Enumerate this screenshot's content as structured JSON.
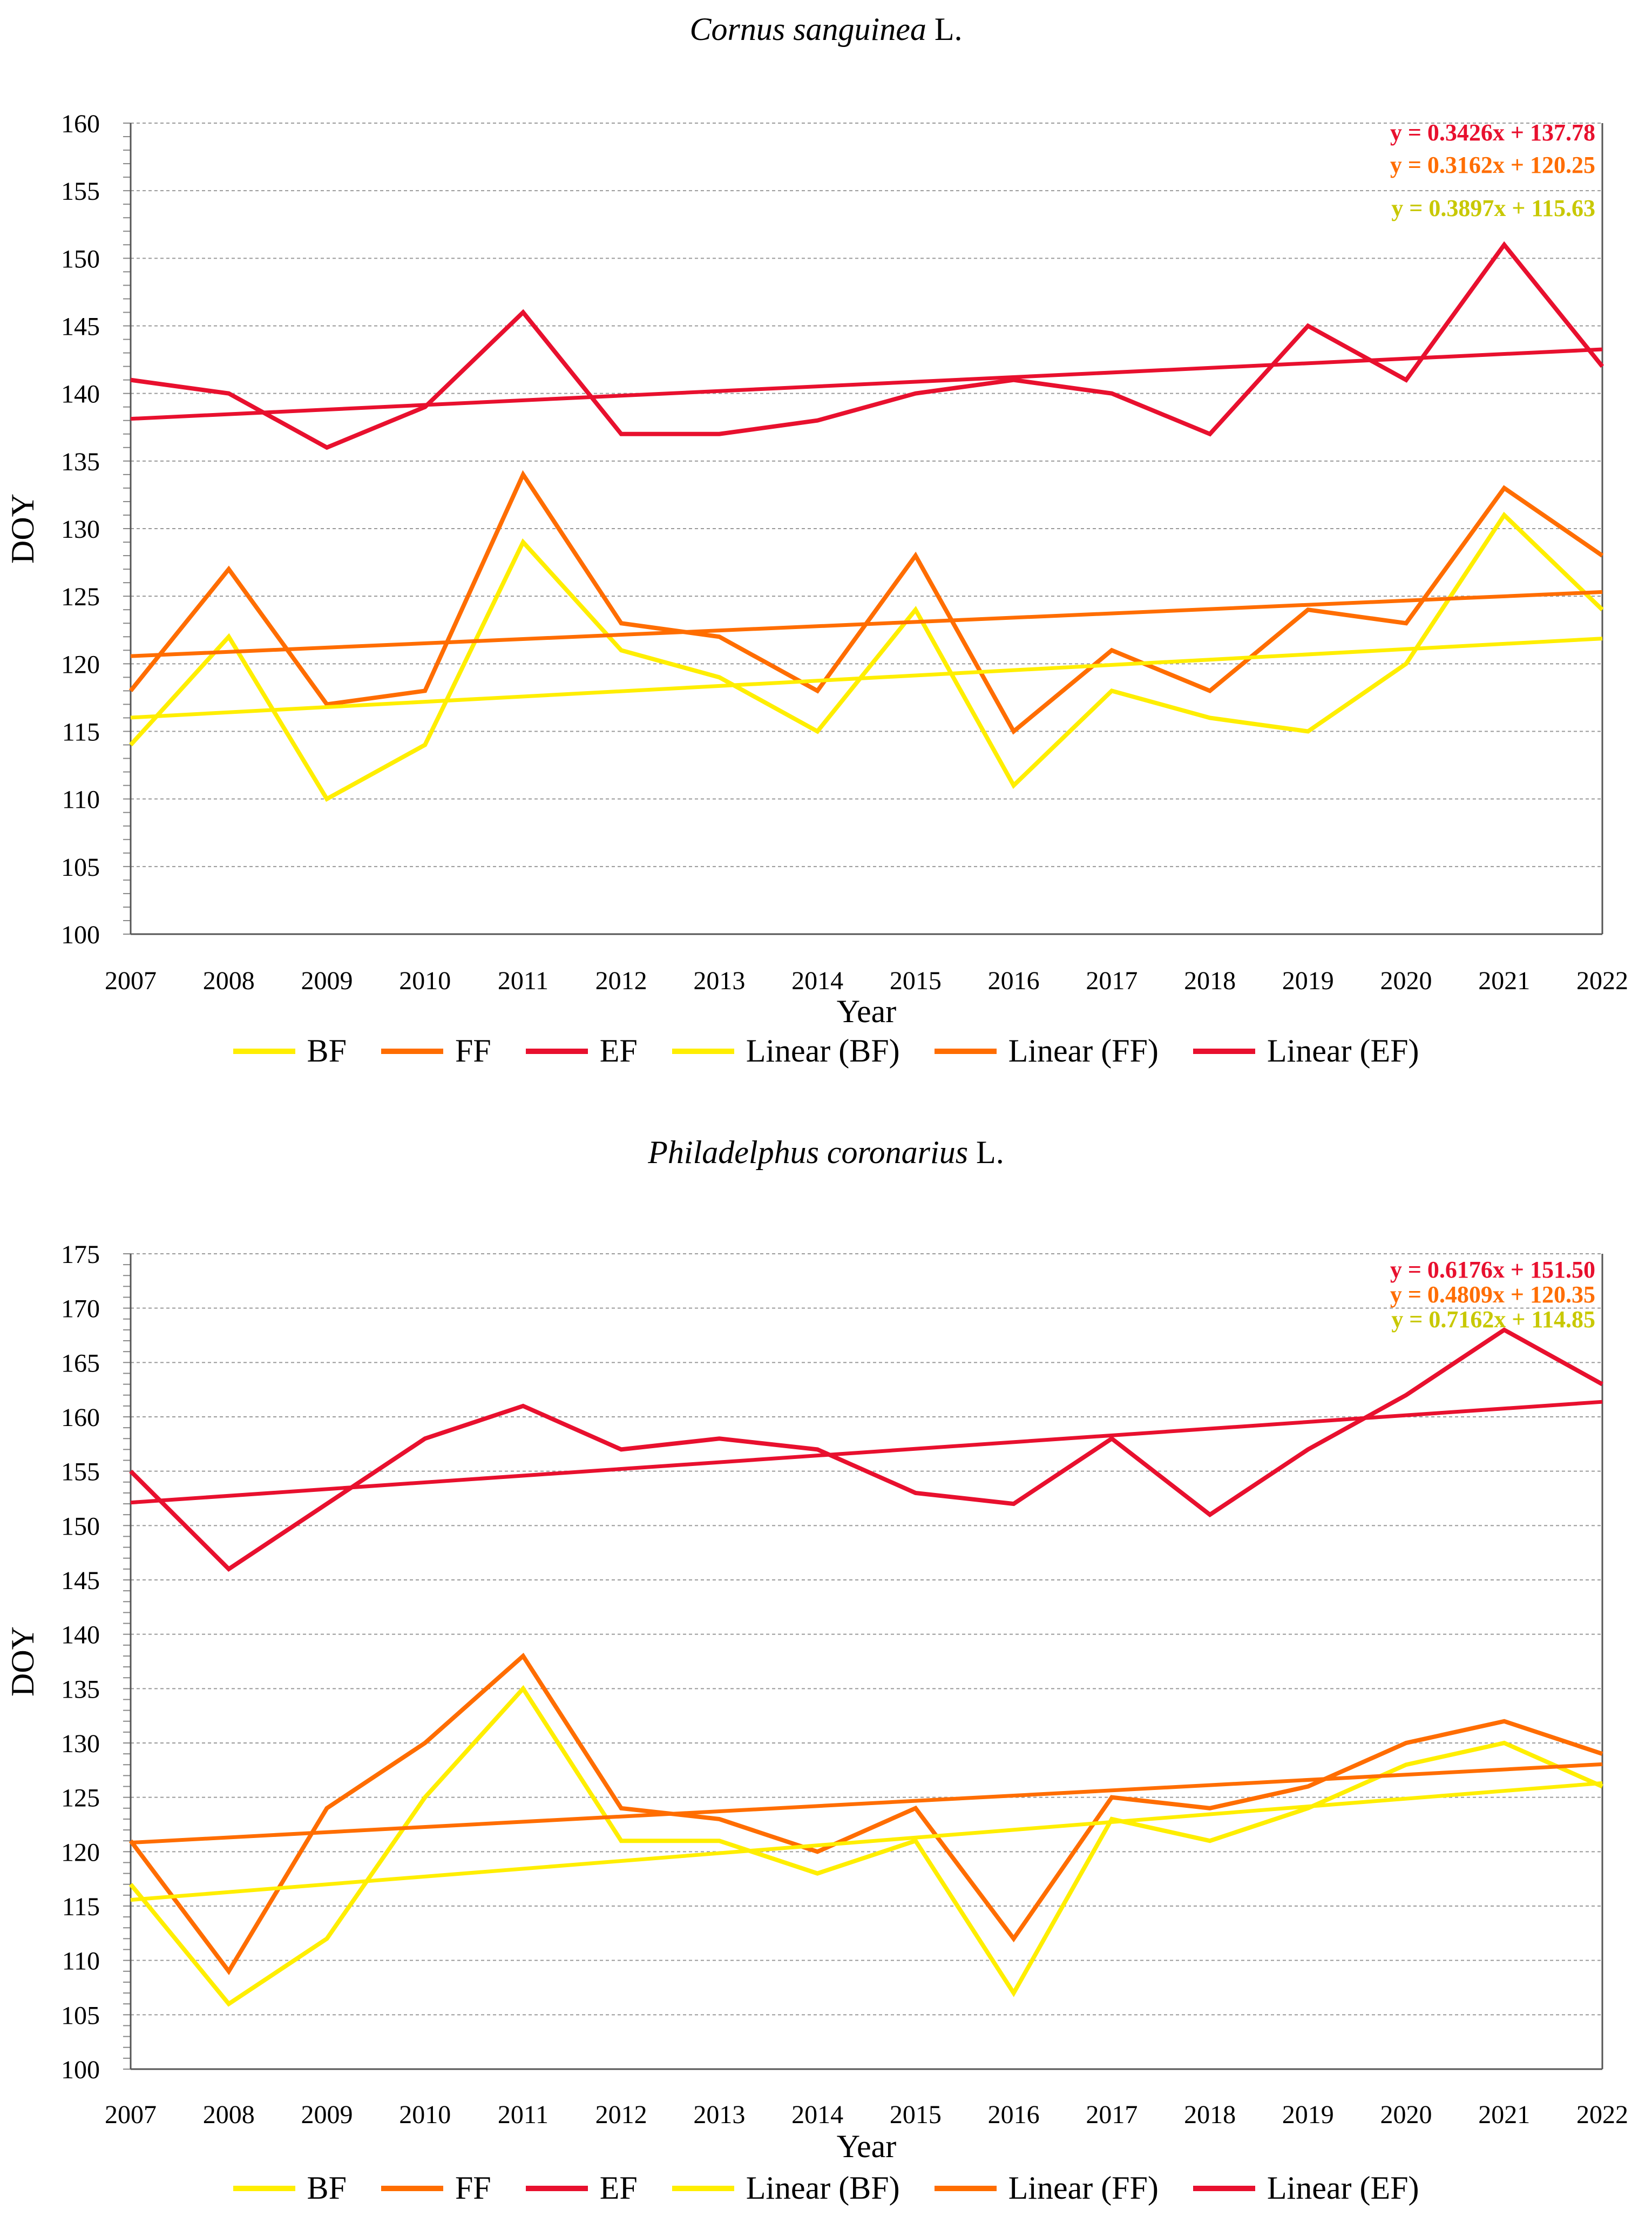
{
  "colors": {
    "BF": "#ffee00",
    "FF": "#ff6d00",
    "EF": "#e8102e",
    "BF_eq": "#c8c800",
    "grid": "#9a9a9a"
  },
  "chart_data": [
    {
      "type": "line",
      "title_species": "Cornus sanguinea",
      "title_suffix": "L.",
      "xlabel": "Year",
      "ylabel": "DOY",
      "ylim": [
        100,
        160
      ],
      "ytick_step": 5,
      "x": [
        2007,
        2008,
        2009,
        2010,
        2011,
        2012,
        2013,
        2014,
        2015,
        2016,
        2017,
        2018,
        2019,
        2020,
        2021,
        2022
      ],
      "series": [
        {
          "name": "BF",
          "values": [
            114,
            122,
            110,
            114,
            129,
            121,
            119,
            115,
            124,
            111,
            118,
            116,
            115,
            120,
            131,
            124
          ]
        },
        {
          "name": "FF",
          "values": [
            118,
            127,
            117,
            118,
            134,
            123,
            122,
            118,
            128,
            115,
            121,
            118,
            124,
            123,
            133,
            128
          ]
        },
        {
          "name": "EF",
          "values": [
            141,
            140,
            136,
            139,
            146,
            137,
            137,
            138,
            140,
            141,
            140,
            137,
            145,
            141,
            151,
            142
          ]
        }
      ],
      "trendlines": [
        {
          "name": "Linear (BF)",
          "of": "BF",
          "slope": 0.3897,
          "intercept": 115.63,
          "equation": "y = 0.3897x + 115.63"
        },
        {
          "name": "Linear (FF)",
          "of": "FF",
          "slope": 0.3162,
          "intercept": 120.25,
          "equation": "y = 0.3162x + 120.25"
        },
        {
          "name": "Linear (EF)",
          "of": "EF",
          "slope": 0.3426,
          "intercept": 137.78,
          "equation": "y = 0.3426x + 137.78"
        }
      ],
      "legend": [
        "BF",
        "FF",
        "EF",
        "Linear (BF)",
        "Linear (FF)",
        "Linear (EF)"
      ]
    },
    {
      "type": "line",
      "title_species": "Philadelphus coronarius",
      "title_suffix": "L.",
      "xlabel": "Year",
      "ylabel": "DOY",
      "ylim": [
        100,
        175
      ],
      "ytick_step": 5,
      "x": [
        2007,
        2008,
        2009,
        2010,
        2011,
        2012,
        2013,
        2014,
        2015,
        2016,
        2017,
        2018,
        2019,
        2020,
        2021,
        2022
      ],
      "series": [
        {
          "name": "BF",
          "values": [
            117,
            106,
            112,
            125,
            135,
            121,
            121,
            118,
            121,
            107,
            123,
            121,
            124,
            128,
            130,
            126
          ]
        },
        {
          "name": "FF",
          "values": [
            121,
            109,
            124,
            130,
            138,
            124,
            123,
            120,
            124,
            112,
            125,
            124,
            126,
            130,
            132,
            129
          ]
        },
        {
          "name": "EF",
          "values": [
            155,
            146,
            152,
            158,
            161,
            157,
            158,
            157,
            153,
            152,
            158,
            151,
            157,
            162,
            168,
            163
          ]
        }
      ],
      "trendlines": [
        {
          "name": "Linear (BF)",
          "of": "BF",
          "slope": 0.7162,
          "intercept": 114.85,
          "equation": "y = 0.7162x + 114.85"
        },
        {
          "name": "Linear (FF)",
          "of": "FF",
          "slope": 0.4809,
          "intercept": 120.35,
          "equation": "y = 0.4809x + 120.35"
        },
        {
          "name": "Linear (EF)",
          "of": "EF",
          "slope": 0.6176,
          "intercept": 151.5,
          "equation": "y = 0.6176x + 151.50"
        }
      ],
      "legend": [
        "BF",
        "FF",
        "EF",
        "Linear (BF)",
        "Linear (FF)",
        "Linear (EF)"
      ]
    }
  ]
}
